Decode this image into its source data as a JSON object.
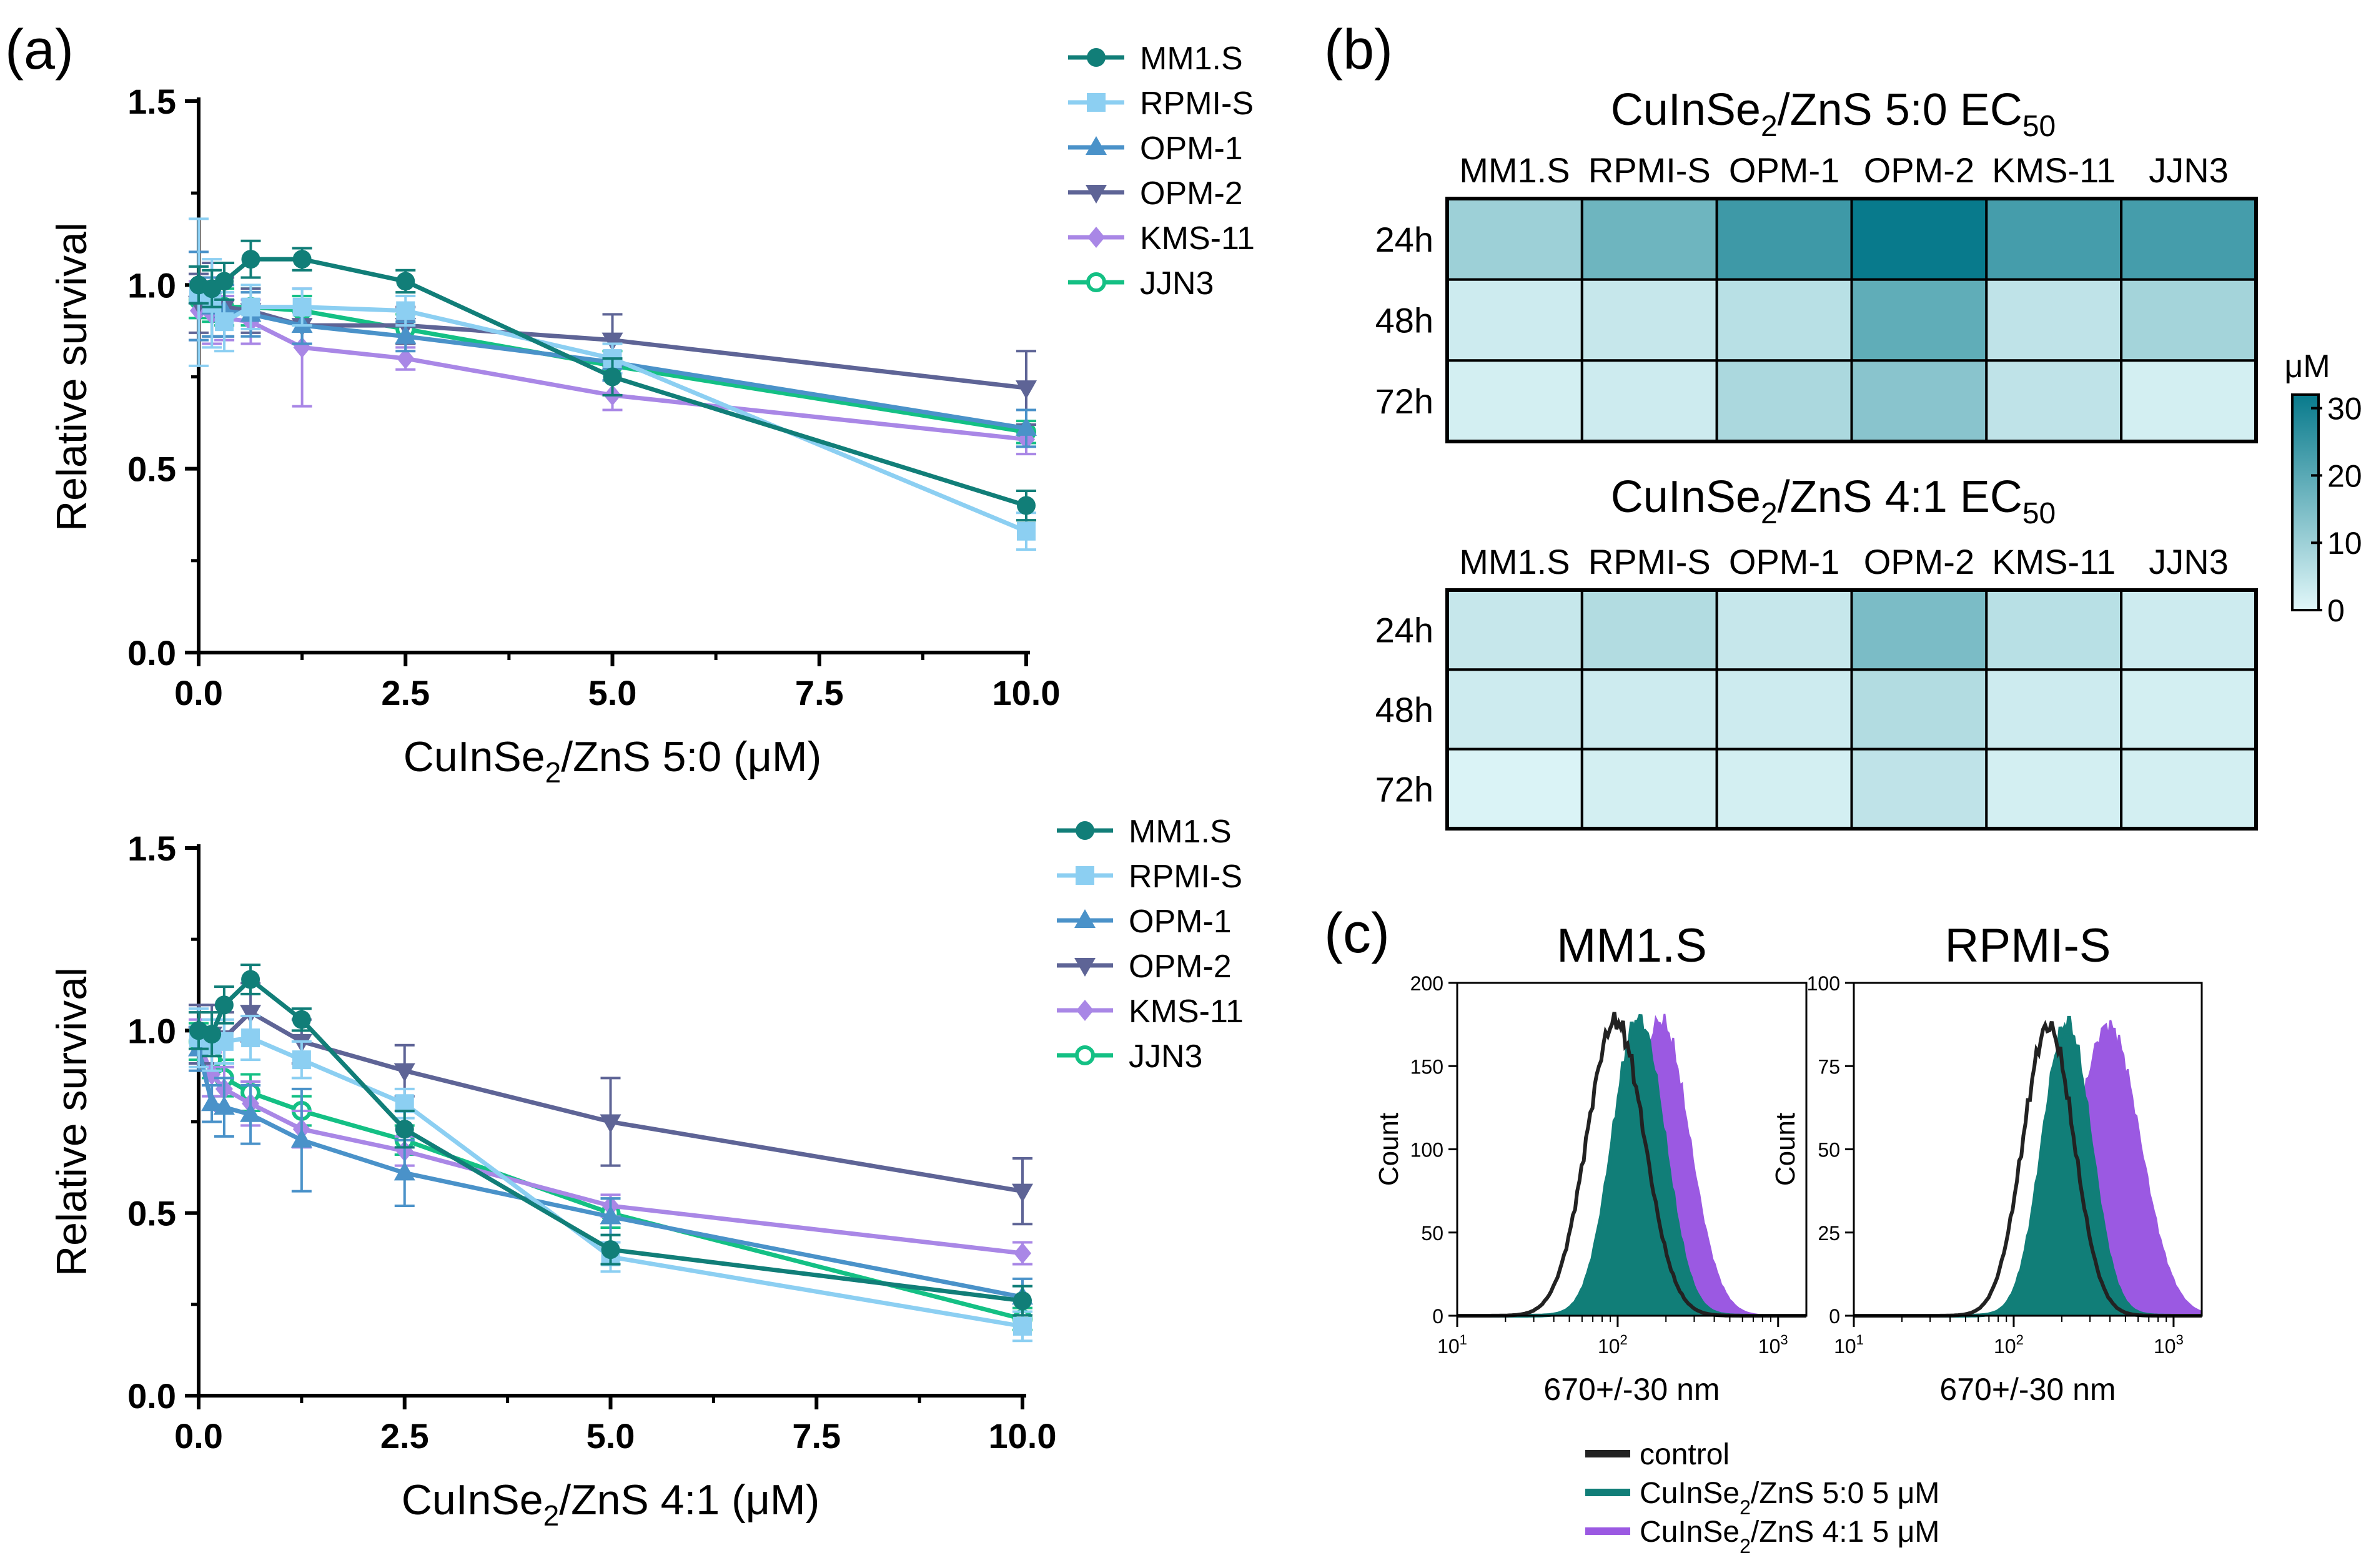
{
  "panel_labels": {
    "a": "(a)",
    "b": "(b)",
    "c": "(c)"
  },
  "colors": {
    "MM1.S": "#117e78",
    "RPMI-S": "#8ccff2",
    "OPM-1": "#4a92c9",
    "OPM-2": "#5e6496",
    "KMS-11": "#a987e6",
    "JJN3": "#14c084",
    "heat_low": "#e1f7f9",
    "heat_high": "#087a8c",
    "hist_control": "#222222",
    "hist_50": "#117e78",
    "hist_41": "#9b59e2"
  },
  "chart_data": [
    {
      "id": "a-top",
      "type": "line",
      "ylabel": "Relative survival",
      "xlabel_parts": [
        "CuInSe",
        "2",
        "/ZnS 5:0 (μM)"
      ],
      "xlim": [
        0,
        10
      ],
      "ylim": [
        0,
        1.5
      ],
      "xticks": [
        "0.0",
        "2.5",
        "5.0",
        "7.5",
        "10.0"
      ],
      "yticks": [
        "0.0",
        "0.5",
        "1.0",
        "1.5"
      ],
      "legend": [
        "MM1.S",
        "RPMI-S",
        "OPM-1",
        "OPM-2",
        "KMS-11",
        "JJN3"
      ],
      "series": [
        {
          "name": "MM1.S",
          "marker": "circle",
          "x": [
            0,
            0.16,
            0.31,
            0.63,
            1.25,
            2.5,
            5,
            10
          ],
          "y": [
            1.0,
            0.99,
            1.01,
            1.07,
            1.07,
            1.01,
            0.75,
            0.4
          ],
          "err": [
            0.05,
            0.05,
            0.05,
            0.05,
            0.03,
            0.03,
            0.05,
            0.04
          ]
        },
        {
          "name": "RPMI-S",
          "marker": "square",
          "x": [
            0,
            0.16,
            0.31,
            0.63,
            1.25,
            2.5,
            5,
            10
          ],
          "y": [
            0.98,
            0.95,
            0.9,
            0.94,
            0.94,
            0.93,
            0.8,
            0.33
          ],
          "err": [
            0.2,
            0.12,
            0.08,
            0.06,
            0.05,
            0.04,
            0.04,
            0.05
          ]
        },
        {
          "name": "OPM-1",
          "marker": "triangle-up",
          "x": [
            0,
            0.16,
            0.31,
            0.63,
            1.25,
            2.5,
            5,
            10
          ],
          "y": [
            0.97,
            0.94,
            0.93,
            0.92,
            0.89,
            0.86,
            0.79,
            0.61
          ],
          "err": [
            0.12,
            0.08,
            0.07,
            0.06,
            0.05,
            0.04,
            0.05,
            0.05
          ]
        },
        {
          "name": "OPM-2",
          "marker": "triangle-down",
          "x": [
            0,
            0.16,
            0.31,
            0.63,
            1.25,
            2.5,
            5,
            10
          ],
          "y": [
            0.95,
            0.96,
            0.94,
            0.93,
            0.89,
            0.89,
            0.85,
            0.72
          ],
          "err": [
            0.08,
            0.1,
            0.08,
            0.06,
            0.05,
            0.05,
            0.07,
            0.1
          ]
        },
        {
          "name": "KMS-11",
          "marker": "diamond",
          "x": [
            0,
            0.16,
            0.31,
            0.63,
            1.25,
            2.5,
            5,
            10
          ],
          "y": [
            0.93,
            0.92,
            0.91,
            0.9,
            0.83,
            0.8,
            0.7,
            0.58
          ],
          "err": [
            0.08,
            0.08,
            0.06,
            0.06,
            0.16,
            0.03,
            0.04,
            0.04
          ]
        },
        {
          "name": "JJN3",
          "marker": "open-circle",
          "x": [
            0,
            0.16,
            0.31,
            0.63,
            1.25,
            2.5,
            5,
            10
          ],
          "y": [
            0.96,
            0.95,
            0.94,
            0.94,
            0.93,
            0.88,
            0.78,
            0.6
          ],
          "err": [
            0.05,
            0.05,
            0.05,
            0.05,
            0.04,
            0.04,
            0.04,
            0.03
          ]
        }
      ]
    },
    {
      "id": "a-bottom",
      "type": "line",
      "ylabel": "Relative survival",
      "xlabel_parts": [
        "CuInSe",
        "2",
        "/ZnS 4:1 (μM)"
      ],
      "xlim": [
        0,
        10
      ],
      "ylim": [
        0,
        1.5
      ],
      "xticks": [
        "0.0",
        "2.5",
        "5.0",
        "7.5",
        "10.0"
      ],
      "yticks": [
        "0.0",
        "0.5",
        "1.0",
        "1.5"
      ],
      "legend": [
        "MM1.S",
        "RPMI-S",
        "OPM-1",
        "OPM-2",
        "KMS-11",
        "JJN3"
      ],
      "series": [
        {
          "name": "MM1.S",
          "marker": "circle",
          "x": [
            0,
            0.16,
            0.31,
            0.63,
            1.25,
            2.5,
            5,
            10
          ],
          "y": [
            1.0,
            0.99,
            1.07,
            1.14,
            1.03,
            0.73,
            0.4,
            0.26
          ],
          "err": [
            0.05,
            0.06,
            0.05,
            0.04,
            0.03,
            0.05,
            0.04,
            0.04
          ]
        },
        {
          "name": "RPMI-S",
          "marker": "square",
          "x": [
            0,
            0.16,
            0.31,
            0.63,
            1.25,
            2.5,
            5,
            10
          ],
          "y": [
            0.98,
            0.96,
            0.97,
            0.98,
            0.92,
            0.8,
            0.38,
            0.19
          ],
          "err": [
            0.08,
            0.07,
            0.06,
            0.06,
            0.05,
            0.04,
            0.04,
            0.04
          ]
        },
        {
          "name": "OPM-1",
          "marker": "triangle-up",
          "x": [
            0,
            0.16,
            0.31,
            0.63,
            1.25,
            2.5,
            5,
            10
          ],
          "y": [
            0.95,
            0.8,
            0.79,
            0.77,
            0.7,
            0.61,
            0.49,
            0.27
          ],
          "err": [
            0.06,
            0.05,
            0.08,
            0.08,
            0.14,
            0.09,
            0.05,
            0.05
          ]
        },
        {
          "name": "OPM-2",
          "marker": "triangle-down",
          "x": [
            0,
            0.16,
            0.31,
            0.63,
            1.25,
            2.5,
            5,
            10
          ],
          "y": [
            0.99,
            0.99,
            0.98,
            1.05,
            0.97,
            0.89,
            0.75,
            0.56
          ],
          "err": [
            0.08,
            0.08,
            0.07,
            0.08,
            0.06,
            0.07,
            0.12,
            0.09
          ]
        },
        {
          "name": "KMS-11",
          "marker": "diamond",
          "x": [
            0,
            0.16,
            0.31,
            0.63,
            1.25,
            2.5,
            5,
            10
          ],
          "y": [
            0.97,
            0.88,
            0.84,
            0.8,
            0.73,
            0.67,
            0.52,
            0.39
          ],
          "err": [
            0.06,
            0.06,
            0.06,
            0.06,
            0.05,
            0.04,
            0.03,
            0.03
          ]
        },
        {
          "name": "JJN3",
          "marker": "open-circle",
          "x": [
            0,
            0.16,
            0.31,
            0.63,
            1.25,
            2.5,
            5,
            10
          ],
          "y": [
            0.97,
            0.92,
            0.87,
            0.83,
            0.78,
            0.7,
            0.5,
            0.21
          ],
          "err": [
            0.05,
            0.05,
            0.05,
            0.05,
            0.04,
            0.04,
            0.04,
            0.03
          ]
        }
      ]
    },
    {
      "id": "b-top",
      "type": "heatmap",
      "title_parts": [
        "CuInSe",
        "2",
        "/ZnS 5:0 EC",
        "50"
      ],
      "columns": [
        "MM1.S",
        "RPMI-S",
        "OPM-1",
        "OPM-2",
        "KMS-11",
        "JJN3"
      ],
      "rows": [
        "24h",
        "48h",
        "72h"
      ],
      "values": [
        [
          10,
          17,
          24,
          32,
          23,
          23
        ],
        [
          3,
          4,
          6,
          19,
          5,
          9
        ],
        [
          2,
          3,
          8,
          13,
          5,
          2
        ]
      ],
      "units": "μM"
    },
    {
      "id": "b-bottom",
      "type": "heatmap",
      "title_parts": [
        "CuInSe",
        "2",
        "/ZnS 4:1 EC",
        "50"
      ],
      "columns": [
        "MM1.S",
        "RPMI-S",
        "OPM-1",
        "OPM-2",
        "KMS-11",
        "JJN3"
      ],
      "rows": [
        "24h",
        "48h",
        "72h"
      ],
      "values": [
        [
          4,
          7,
          4,
          15,
          6,
          3
        ],
        [
          3,
          3,
          3,
          7,
          3,
          2
        ],
        [
          1,
          2,
          2,
          5,
          2,
          2
        ]
      ],
      "units": "μM"
    },
    {
      "id": "b-colorbar",
      "type": "colorbar",
      "label": "μM",
      "range": [
        0,
        32
      ],
      "ticks": [
        "30",
        "20",
        "10",
        "0"
      ]
    },
    {
      "id": "c-left",
      "type": "area",
      "title": "MM1.S",
      "ylabel": "Count",
      "xlabel": "670+/-30 nm",
      "x_scale": "log",
      "xlim": [
        10,
        1500
      ],
      "ylim": [
        0,
        200
      ],
      "yticks": [
        "0",
        "50",
        "100",
        "150",
        "200"
      ],
      "x_decades": [
        1,
        2,
        3
      ],
      "series": [
        {
          "name": "control",
          "style": "line",
          "peak": 97,
          "sigma": 0.18,
          "height": 177
        },
        {
          "name": "5:0",
          "style": "fill",
          "peak": 135,
          "sigma": 0.16,
          "height": 177
        },
        {
          "name": "4:1",
          "style": "fill",
          "peak": 185,
          "sigma": 0.18,
          "height": 177
        }
      ]
    },
    {
      "id": "c-right",
      "type": "area",
      "title": "RPMI-S",
      "ylabel": "Count",
      "xlabel": "670+/-30 nm",
      "x_scale": "log",
      "xlim": [
        10,
        1500
      ],
      "ylim": [
        0,
        100
      ],
      "yticks": [
        "0",
        "25",
        "50",
        "75",
        "100"
      ],
      "x_decades": [
        1,
        2,
        3
      ],
      "series": [
        {
          "name": "control",
          "style": "line",
          "peak": 165,
          "sigma": 0.16,
          "height": 87
        },
        {
          "name": "5:0",
          "style": "fill",
          "peak": 215,
          "sigma": 0.15,
          "height": 87
        },
        {
          "name": "4:1",
          "style": "fill",
          "peak": 390,
          "sigma": 0.2,
          "height": 87
        }
      ]
    }
  ],
  "histogram_legend": [
    {
      "series": "control",
      "text": "control"
    },
    {
      "series": "5:0",
      "text_parts": [
        "CuInSe",
        "2",
        "/ZnS 5:0 5 μM"
      ]
    },
    {
      "series": "4:1",
      "text_parts": [
        "CuInSe",
        "2",
        "/ZnS 4:1 5 μM"
      ]
    }
  ]
}
